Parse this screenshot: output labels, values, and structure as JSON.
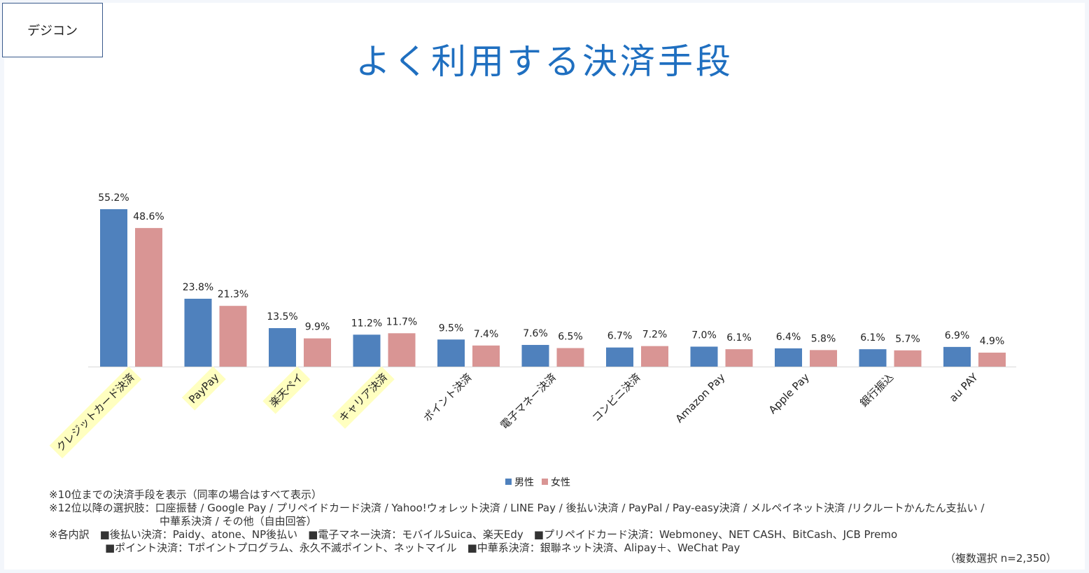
{
  "badge": "デジコン",
  "title": "よく利用する決済手段",
  "chart_data": {
    "type": "bar",
    "categories": [
      "クレジットカード決済",
      "PayPay",
      "楽天ペイ",
      "キャリア決済",
      "ポイント決済",
      "電子マネー決済",
      "コンビニ決済",
      "Amazon Pay",
      "Apple Pay",
      "銀行振込",
      "au PAY"
    ],
    "highlighted_categories": [
      "クレジットカード決済",
      "PayPay",
      "楽天ペイ",
      "キャリア決済"
    ],
    "series": [
      {
        "name": "男性",
        "color": "#4f81bd",
        "values": [
          55.2,
          23.8,
          13.5,
          11.2,
          9.5,
          7.6,
          6.7,
          7.0,
          6.4,
          6.1,
          6.9
        ]
      },
      {
        "name": "女性",
        "color": "#d99594",
        "values": [
          48.6,
          21.3,
          9.9,
          11.7,
          7.4,
          6.5,
          7.2,
          6.1,
          5.8,
          5.7,
          4.9
        ]
      }
    ],
    "unit": "%",
    "legend": "bottom",
    "grid": false
  },
  "notes": {
    "line1": "※10位までの決済手段を表示（同率の場合はすべて表示）",
    "line2": "※12位以降の選択肢：口座振替 / Google Pay / プリペイドカード決済 / Yahoo!ウォレット決済 / LINE Pay  / 後払い決済 / PayPal / Pay-easy決済 / メルペイネット決済 /リクルートかんたん支払い /",
    "line3": "中華系決済 / その他（自由回答）",
    "line4": "※各内訳　■後払い決済：Paidy、atone、NP後払い　■電子マネー決済：モバイルSuica、楽天Edy　■プリペイドカード決済：Webmoney、NET CASH、BitCash、JCB Premo",
    "line5": "■ポイント決済：Tポイントプログラム、永久不滅ポイント、ネットマイル　■中華系決済：銀聯ネット決済、Alipay＋、WeChat Pay"
  },
  "sample": "（複数選択 n=2,350）"
}
